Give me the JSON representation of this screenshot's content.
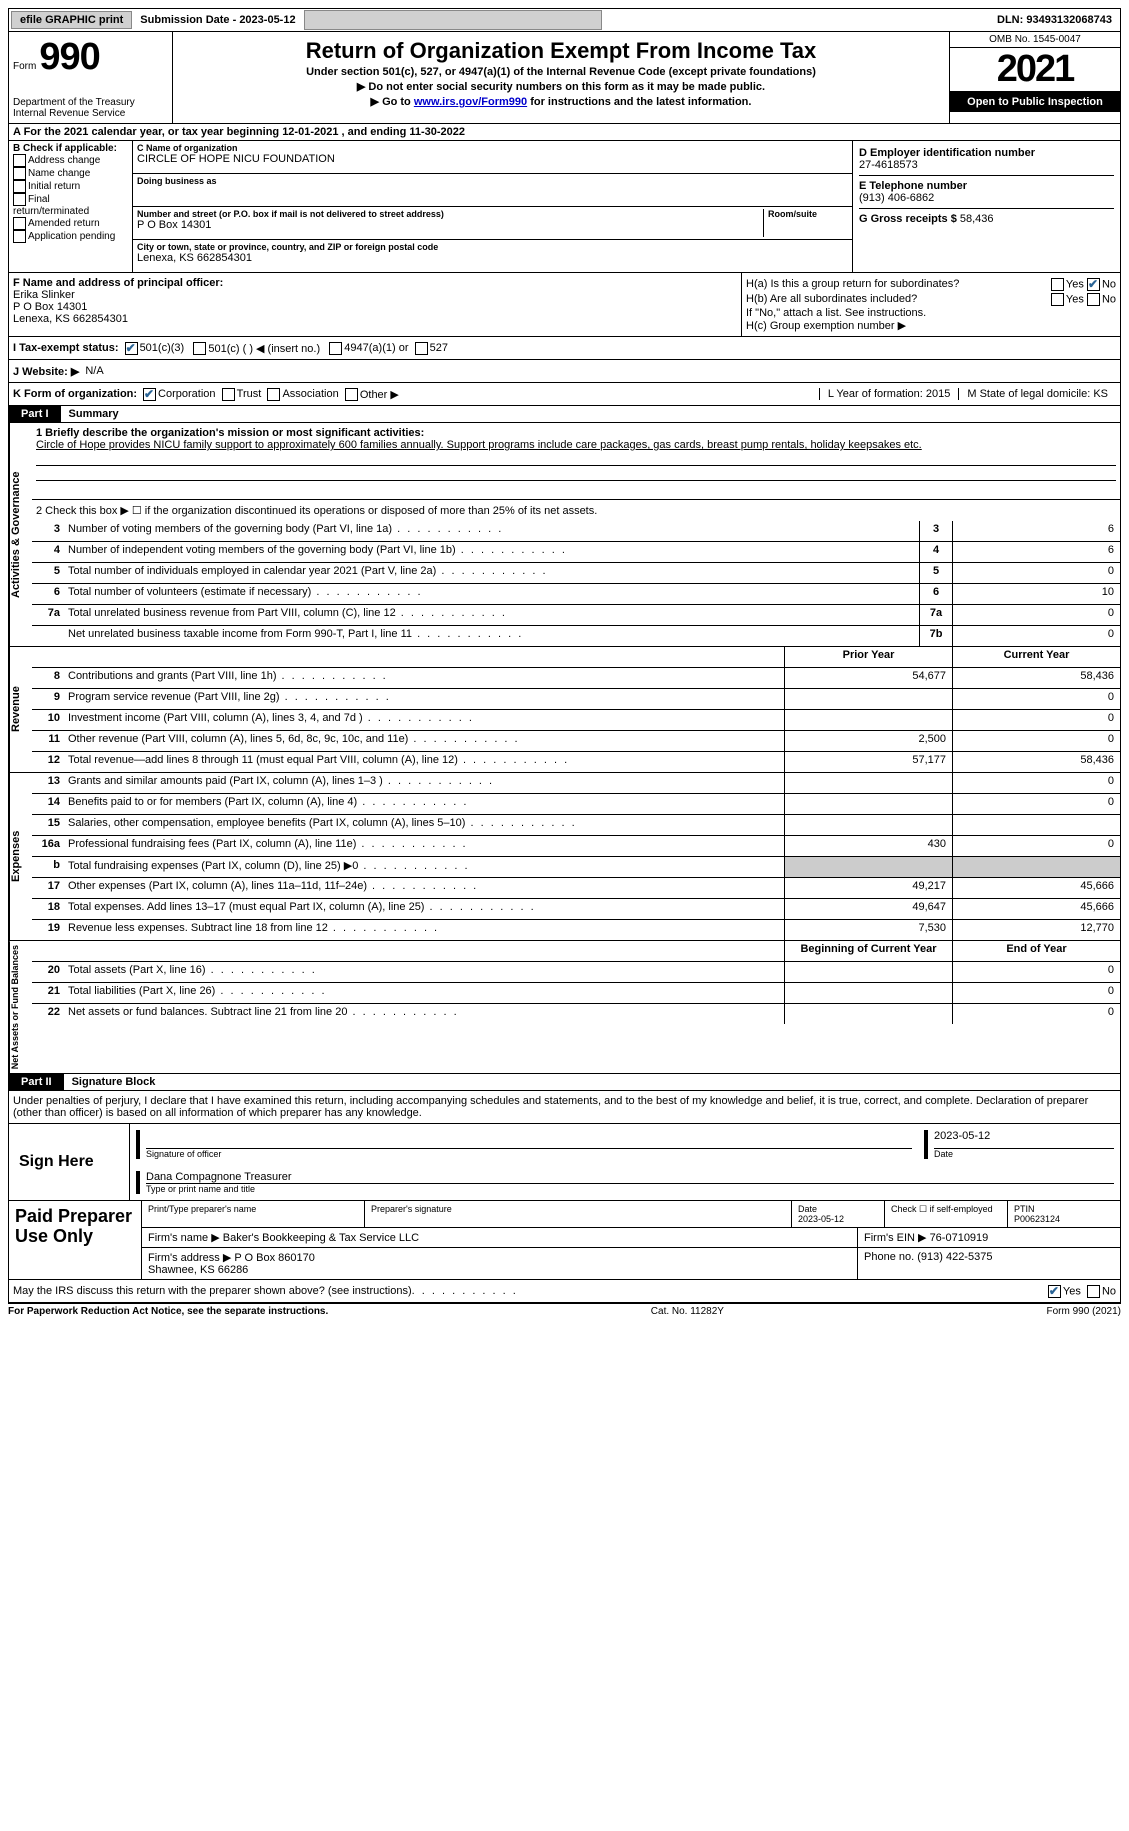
{
  "top": {
    "efile": "efile GRAPHIC print",
    "sub_date_lbl": "Submission Date - 2023-05-12",
    "dln": "DLN: 93493132068743"
  },
  "header": {
    "form_lbl": "Form",
    "form_num": "990",
    "title": "Return of Organization Exempt From Income Tax",
    "sub1": "Under section 501(c), 527, or 4947(a)(1) of the Internal Revenue Code (except private foundations)",
    "sub2": "▶ Do not enter social security numbers on this form as it may be made public.",
    "sub3_pre": "▶ Go to ",
    "sub3_link": "www.irs.gov/Form990",
    "sub3_post": " for instructions and the latest information.",
    "dept": "Department of the Treasury\nInternal Revenue Service",
    "omb": "OMB No. 1545-0047",
    "year": "2021",
    "open": "Open to Public Inspection"
  },
  "rowA": "A For the 2021 calendar year, or tax year beginning 12-01-2021   , and ending 11-30-2022",
  "B": {
    "title": "B Check if applicable:",
    "items": [
      "Address change",
      "Name change",
      "Initial return",
      "Final return/terminated",
      "Amended return",
      "Application pending"
    ]
  },
  "C": {
    "name_lbl": "C Name of organization",
    "name": "CIRCLE OF HOPE NICU FOUNDATION",
    "dba_lbl": "Doing business as",
    "addr_lbl": "Number and street (or P.O. box if mail is not delivered to street address)",
    "room_lbl": "Room/suite",
    "addr": "P O Box 14301",
    "city_lbl": "City or town, state or province, country, and ZIP or foreign postal code",
    "city": "Lenexa, KS  662854301"
  },
  "D": {
    "ein_lbl": "D Employer identification number",
    "ein": "27-4618573",
    "tel_lbl": "E Telephone number",
    "tel": "(913) 406-6862",
    "gross_lbl": "G Gross receipts $",
    "gross": "58,436"
  },
  "F": {
    "lbl": "F Name and address of principal officer:",
    "name": "Erika Slinker",
    "addr1": "P O Box 14301",
    "addr2": "Lenexa, KS  662854301"
  },
  "H": {
    "a": "H(a)  Is this a group return for subordinates?",
    "b": "H(b)  Are all subordinates included?",
    "note": "If \"No,\" attach a list. See instructions.",
    "c": "H(c)  Group exemption number ▶"
  },
  "I": {
    "lbl": "I   Tax-exempt status:",
    "opts": [
      "501(c)(3)",
      "501(c) (  ) ◀ (insert no.)",
      "4947(a)(1) or",
      "527"
    ]
  },
  "J": {
    "lbl": "J   Website: ▶",
    "val": "N/A"
  },
  "K": {
    "lbl": "K Form of organization:",
    "opts": [
      "Corporation",
      "Trust",
      "Association",
      "Other ▶"
    ]
  },
  "L": {
    "lbl": "L Year of formation: 2015"
  },
  "M": {
    "lbl": "M State of legal domicile: KS"
  },
  "part1": {
    "num": "Part I",
    "title": "Summary",
    "mission_lbl": "1   Briefly describe the organization's mission or most significant activities:",
    "mission": "Circle of Hope provides NICU family support to approximately 600 families annually. Support programs include care packages, gas cards, breast pump rentals, holiday keepsakes etc.",
    "line2": "2   Check this box ▶ ☐ if the organization discontinued its operations or disposed of more than 25% of its net assets.",
    "rows_gov": [
      {
        "n": "3",
        "d": "Number of voting members of the governing body (Part VI, line 1a)",
        "b": "3",
        "v": "6"
      },
      {
        "n": "4",
        "d": "Number of independent voting members of the governing body (Part VI, line 1b)",
        "b": "4",
        "v": "6"
      },
      {
        "n": "5",
        "d": "Total number of individuals employed in calendar year 2021 (Part V, line 2a)",
        "b": "5",
        "v": "0"
      },
      {
        "n": "6",
        "d": "Total number of volunteers (estimate if necessary)",
        "b": "6",
        "v": "10"
      },
      {
        "n": "7a",
        "d": "Total unrelated business revenue from Part VIII, column (C), line 12",
        "b": "7a",
        "v": "0"
      },
      {
        "n": "",
        "d": "Net unrelated business taxable income from Form 990-T, Part I, line 11",
        "b": "7b",
        "v": "0"
      }
    ],
    "col_hdr": {
      "py": "Prior Year",
      "cy": "Current Year"
    },
    "rows_rev": [
      {
        "n": "8",
        "d": "Contributions and grants (Part VIII, line 1h)",
        "py": "54,677",
        "cy": "58,436"
      },
      {
        "n": "9",
        "d": "Program service revenue (Part VIII, line 2g)",
        "py": "",
        "cy": "0"
      },
      {
        "n": "10",
        "d": "Investment income (Part VIII, column (A), lines 3, 4, and 7d )",
        "py": "",
        "cy": "0"
      },
      {
        "n": "11",
        "d": "Other revenue (Part VIII, column (A), lines 5, 6d, 8c, 9c, 10c, and 11e)",
        "py": "2,500",
        "cy": "0"
      },
      {
        "n": "12",
        "d": "Total revenue—add lines 8 through 11 (must equal Part VIII, column (A), line 12)",
        "py": "57,177",
        "cy": "58,436"
      }
    ],
    "rows_exp": [
      {
        "n": "13",
        "d": "Grants and similar amounts paid (Part IX, column (A), lines 1–3 )",
        "py": "",
        "cy": "0"
      },
      {
        "n": "14",
        "d": "Benefits paid to or for members (Part IX, column (A), line 4)",
        "py": "",
        "cy": "0"
      },
      {
        "n": "15",
        "d": "Salaries, other compensation, employee benefits (Part IX, column (A), lines 5–10)",
        "py": "",
        "cy": ""
      },
      {
        "n": "16a",
        "d": "Professional fundraising fees (Part IX, column (A), line 11e)",
        "py": "430",
        "cy": "0"
      },
      {
        "n": "b",
        "d": "Total fundraising expenses (Part IX, column (D), line 25) ▶0",
        "py": "SHADE",
        "cy": "SHADE"
      },
      {
        "n": "17",
        "d": "Other expenses (Part IX, column (A), lines 11a–11d, 11f–24e)",
        "py": "49,217",
        "cy": "45,666"
      },
      {
        "n": "18",
        "d": "Total expenses. Add lines 13–17 (must equal Part IX, column (A), line 25)",
        "py": "49,647",
        "cy": "45,666"
      },
      {
        "n": "19",
        "d": "Revenue less expenses. Subtract line 18 from line 12",
        "py": "7,530",
        "cy": "12,770"
      }
    ],
    "col_hdr2": {
      "py": "Beginning of Current Year",
      "cy": "End of Year"
    },
    "rows_net": [
      {
        "n": "20",
        "d": "Total assets (Part X, line 16)",
        "py": "",
        "cy": "0"
      },
      {
        "n": "21",
        "d": "Total liabilities (Part X, line 26)",
        "py": "",
        "cy": "0"
      },
      {
        "n": "22",
        "d": "Net assets or fund balances. Subtract line 21 from line 20",
        "py": "",
        "cy": "0"
      }
    ],
    "vtabs": {
      "gov": "Activities & Governance",
      "rev": "Revenue",
      "exp": "Expenses",
      "net": "Net Assets or Fund Balances"
    }
  },
  "part2": {
    "num": "Part II",
    "title": "Signature Block",
    "decl": "Under penalties of perjury, I declare that I have examined this return, including accompanying schedules and statements, and to the best of my knowledge and belief, it is true, correct, and complete. Declaration of preparer (other than officer) is based on all information of which preparer has any knowledge.",
    "sign_here": "Sign Here",
    "sig_officer": "Signature of officer",
    "sig_date": "2023-05-12",
    "date_lbl": "Date",
    "officer_name": "Dana Compagnone  Treasurer",
    "name_title": "Type or print name and title"
  },
  "paid": {
    "lbl": "Paid Preparer Use Only",
    "hdr": [
      "Print/Type preparer's name",
      "Preparer's signature",
      "Date",
      "Check ☐ if self-employed",
      "PTIN"
    ],
    "date": "2023-05-12",
    "ptin": "P00623124",
    "firm_lbl": "Firm's name   ▶",
    "firm": "Baker's Bookkeeping & Tax Service LLC",
    "ein_lbl": "Firm's EIN ▶",
    "ein": "76-0710919",
    "addr_lbl": "Firm's address ▶",
    "addr": "P O Box 860170\nShawnee, KS  66286",
    "phone_lbl": "Phone no.",
    "phone": "(913) 422-5375"
  },
  "may_discuss": "May the IRS discuss this return with the preparer shown above? (see instructions)",
  "footer": {
    "left": "For Paperwork Reduction Act Notice, see the separate instructions.",
    "mid": "Cat. No. 11282Y",
    "right": "Form 990 (2021)"
  }
}
